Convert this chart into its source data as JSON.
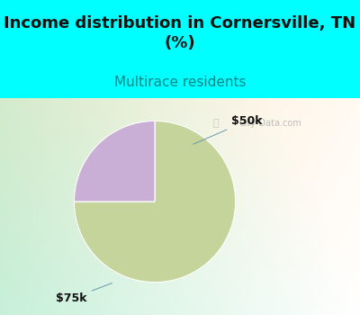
{
  "title": "Income distribution in Cornersville, TN\n(%)",
  "subtitle": "Multirace residents",
  "title_fontsize": 13,
  "subtitle_fontsize": 11,
  "title_color": "#111111",
  "subtitle_color": "#008888",
  "bg_cyan": "#00ffff",
  "slices": [
    75,
    25
  ],
  "slice_colors": [
    "#c5d49a",
    "#c9aed6"
  ],
  "slice_labels": [
    "$75k",
    "$50k"
  ],
  "label_fontsize": 9,
  "label_color": "#111111",
  "startangle": 90,
  "watermark": "City-Data.com"
}
